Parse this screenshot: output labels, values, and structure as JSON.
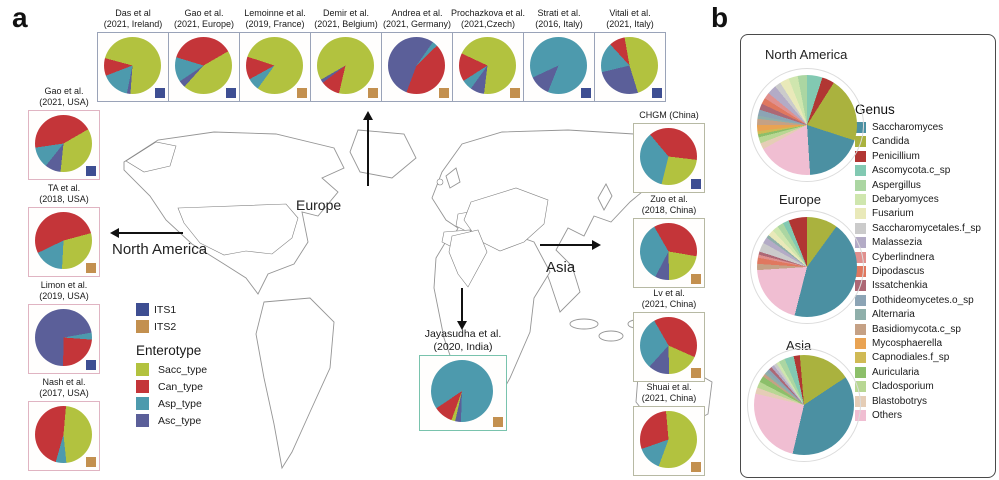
{
  "palette": {
    "ITS1": "#3e4e92",
    "ITS2": "#c3904f",
    "Sacc_type": "#b2c23f",
    "Can_type": "#c43539",
    "Asp_type": "#4d9aad",
    "Asc_type": "#5b5f99",
    "Saccharomyces": "#4b90a2",
    "Candida": "#aab23e",
    "Penicillium": "#b13633",
    "Ascomycota.c_sp": "#82c9b2",
    "Aspergillus": "#abd6a2",
    "Debaryomyces": "#cfe6ae",
    "Fusarium": "#e9e9b9",
    "Saccharomycetales.f_sp": "#cbcbcb",
    "Malassezia": "#b3abc6",
    "Cyberlindnera": "#e0908e",
    "Dipodascus": "#e0785f",
    "Issatchenkia": "#ad6875",
    "Dothideomycetes.o_sp": "#8ca4b5",
    "Alternaria": "#8fafaa",
    "Basidiomycota.c_sp": "#c5a185",
    "Mycosphaerella": "#e9a353",
    "Capnodiales.f_sp": "#d0ba55",
    "Auricularia": "#8cbf6a",
    "Cladosporium": "#b8d793",
    "Blastobotrys": "#e5cdb6",
    "Others": "#f0bed2"
  },
  "panel_a": {
    "label": "a",
    "region_labels": {
      "europe": "Europe",
      "north_america": "North America",
      "asia": "Asia"
    },
    "legend": {
      "its": [
        "ITS1",
        "ITS2"
      ],
      "enterotype_title": "Enterotype",
      "enterotypes": [
        "Sacc_type",
        "Can_type",
        "Asp_type",
        "Asc_type"
      ]
    },
    "map_colors": {
      "usa": "#e9a3b7",
      "alaska": "#e9a3b7",
      "france": "#d6ba2e",
      "germany": "#9dbac9",
      "spain": "#90399b",
      "italy": "#32509e",
      "ireland": "#32509e",
      "china": "#90906a",
      "india": "#7dceaa"
    }
  },
  "panel_b": {
    "label": "b",
    "genus_title": "Genus",
    "genus_legend": [
      "Saccharomyces",
      "Candida",
      "Penicillium",
      "Ascomycota.c_sp",
      "Aspergillus",
      "Debaryomyces",
      "Fusarium",
      "Saccharomycetales.f_sp",
      "Malassezia",
      "Cyberlindnera",
      "Dipodascus",
      "Issatchenkia",
      "Dothideomycetes.o_sp",
      "Alternaria",
      "Basidiomycota.c_sp",
      "Mycosphaerella",
      "Capnodiales.f_sp",
      "Auricularia",
      "Cladosporium",
      "Blastobotrys",
      "Others"
    ]
  },
  "chart_data": [
    {
      "id": "das-ireland",
      "type": "pie",
      "group": "top",
      "title": "Das et al",
      "subtitle": "(2021, Ireland)",
      "marker": "ITS1",
      "start_deg": 285,
      "slices": [
        [
          "Sacc_type",
          72
        ],
        [
          "Asc_type",
          2
        ],
        [
          "Asp_type",
          16
        ],
        [
          "Can_type",
          10
        ]
      ]
    },
    {
      "id": "gao-europe",
      "type": "pie",
      "group": "top",
      "title": "Gao et al.",
      "subtitle": "(2021, Europe)",
      "marker": "ITS1",
      "start_deg": 60,
      "slices": [
        [
          "Sacc_type",
          45
        ],
        [
          "Asc_type",
          4
        ],
        [
          "Asp_type",
          14
        ],
        [
          "Can_type",
          37
        ]
      ]
    },
    {
      "id": "lemoinne-france",
      "type": "pie",
      "group": "top",
      "title": "Lemoinne et al.",
      "subtitle": "(2019, France)",
      "marker": "ITS2",
      "start_deg": 288,
      "slices": [
        [
          "Sacc_type",
          80
        ],
        [
          "Asp_type",
          7
        ],
        [
          "Can_type",
          13
        ]
      ]
    },
    {
      "id": "demir-belgium",
      "type": "pie",
      "group": "top",
      "title": "Demir et al.",
      "subtitle": "(2021, Belgium)",
      "marker": "ITS2",
      "start_deg": 240,
      "slices": [
        [
          "Sacc_type",
          87
        ],
        [
          "Can_type",
          11
        ],
        [
          "Asc_type",
          2
        ]
      ]
    },
    {
      "id": "andrea-germany",
      "type": "pie",
      "group": "top",
      "title": "Andrea et al.",
      "subtitle": "(2021, Germany)",
      "marker": "ITS2",
      "start_deg": 35,
      "slices": [
        [
          "Asp_type",
          3
        ],
        [
          "Can_type",
          43
        ],
        [
          "Asc_type",
          54
        ]
      ]
    },
    {
      "id": "prochazkova-czech",
      "type": "pie",
      "group": "top",
      "title": "Prochazkova et al.",
      "subtitle": "(2021,Czech)",
      "marker": "ITS2",
      "start_deg": 295,
      "slices": [
        [
          "Sacc_type",
          70
        ],
        [
          "Asc_type",
          8
        ],
        [
          "Asp_type",
          6
        ],
        [
          "Can_type",
          16
        ]
      ]
    },
    {
      "id": "strati-italy",
      "type": "pie",
      "group": "top",
      "title": "Strati et al.",
      "subtitle": "(2016, Italy)",
      "marker": "ITS1",
      "start_deg": 245,
      "slices": [
        [
          "Asp_type",
          88
        ],
        [
          "Asc_type",
          12
        ]
      ]
    },
    {
      "id": "vitali-italy",
      "type": "pie",
      "group": "top",
      "title": "Vitali et al.",
      "subtitle": "(2021, Italy)",
      "marker": "ITS1",
      "start_deg": 350,
      "slices": [
        [
          "Sacc_type",
          48
        ],
        [
          "Asc_type",
          26
        ],
        [
          "Asp_type",
          17
        ],
        [
          "Can_type",
          9
        ]
      ]
    },
    {
      "id": "gao-usa",
      "type": "pie",
      "group": "left",
      "title": "Gao et al.",
      "subtitle": "(2021, USA)",
      "marker": "ITS1",
      "start_deg": 60,
      "slices": [
        [
          "Sacc_type",
          35
        ],
        [
          "Asc_type",
          9
        ],
        [
          "Asp_type",
          12
        ],
        [
          "Can_type",
          44
        ]
      ]
    },
    {
      "id": "ta-usa",
      "type": "pie",
      "group": "left",
      "title": "TA et al.",
      "subtitle": "(2018, USA)",
      "marker": "ITS2",
      "start_deg": 75,
      "slices": [
        [
          "Sacc_type",
          30
        ],
        [
          "Asp_type",
          17
        ],
        [
          "Can_type",
          53
        ]
      ]
    },
    {
      "id": "limon-usa",
      "type": "pie",
      "group": "left",
      "title": "Limon et al.",
      "subtitle": "(2019, USA)",
      "marker": "ITS1",
      "start_deg": 80,
      "slices": [
        [
          "Asp_type",
          4
        ],
        [
          "Can_type",
          24
        ],
        [
          "Asc_type",
          72
        ]
      ]
    },
    {
      "id": "nash-usa",
      "type": "pie",
      "group": "left",
      "title": "Nash et al.",
      "subtitle": "(2017, USA)",
      "marker": "ITS2",
      "start_deg": 5,
      "slices": [
        [
          "Sacc_type",
          47
        ],
        [
          "Asp_type",
          6
        ],
        [
          "Can_type",
          47
        ]
      ]
    },
    {
      "id": "chgm-china",
      "type": "pie",
      "group": "right",
      "title": "CHGM (China)",
      "subtitle": "",
      "marker": "ITS1",
      "start_deg": 320,
      "slices": [
        [
          "Can_type",
          38
        ],
        [
          "Sacc_type",
          27
        ],
        [
          "Asp_type",
          35
        ]
      ]
    },
    {
      "id": "zuo-china",
      "type": "pie",
      "group": "right",
      "title": "Zuo et al.",
      "subtitle": "(2018, China)",
      "marker": "ITS2",
      "start_deg": 330,
      "slices": [
        [
          "Can_type",
          36
        ],
        [
          "Sacc_type",
          22
        ],
        [
          "Asc_type",
          8
        ],
        [
          "Asp_type",
          34
        ]
      ]
    },
    {
      "id": "lv-china",
      "type": "pie",
      "group": "right",
      "title": "Lv et al.",
      "subtitle": "(2021, China)",
      "marker": "ITS2",
      "start_deg": 330,
      "slices": [
        [
          "Can_type",
          40
        ],
        [
          "Sacc_type",
          18
        ],
        [
          "Asc_type",
          12
        ],
        [
          "Asp_type",
          30
        ]
      ]
    },
    {
      "id": "shuai-china",
      "type": "pie",
      "group": "right",
      "title": "Shuai et al.",
      "subtitle": "(2021, China)",
      "marker": "ITS2",
      "start_deg": 355,
      "slices": [
        [
          "Sacc_type",
          57
        ],
        [
          "Asp_type",
          14
        ],
        [
          "Can_type",
          29
        ]
      ]
    },
    {
      "id": "jayasudha-india",
      "type": "pie",
      "group": "india",
      "title": "Jayasudha et al.",
      "subtitle": "(2020, India)",
      "marker": "ITS2",
      "start_deg": 182,
      "slices": [
        [
          "Asc_type",
          3
        ],
        [
          "Sacc_type",
          2
        ],
        [
          "Can_type",
          10
        ],
        [
          "Asp_type",
          85
        ]
      ]
    },
    {
      "id": "region-north-america",
      "type": "pie",
      "group": "region",
      "title": "North America",
      "start_deg": 0,
      "slices": [
        [
          "Ascomycota.c_sp",
          5
        ],
        [
          "Penicillium",
          4
        ],
        [
          "Candida",
          21
        ],
        [
          "Saccharomyces",
          19
        ],
        [
          "Others",
          18
        ],
        [
          "Blastobotrys",
          2
        ],
        [
          "Cladosporium",
          2
        ],
        [
          "Auricularia",
          1
        ],
        [
          "Capnodiales.f_sp",
          1
        ],
        [
          "Mycosphaerella",
          2
        ],
        [
          "Basidiomycota.c_sp",
          2
        ],
        [
          "Alternaria",
          1
        ],
        [
          "Dothideomycetes.o_sp",
          2
        ],
        [
          "Issatchenkia",
          2
        ],
        [
          "Dipodascus",
          2
        ],
        [
          "Cyberlindnera",
          2
        ],
        [
          "Malassezia",
          3
        ],
        [
          "Saccharomycetales.f_sp",
          2
        ],
        [
          "Fusarium",
          3
        ],
        [
          "Debaryomyces",
          3
        ],
        [
          "Aspergillus",
          3
        ]
      ]
    },
    {
      "id": "region-europe",
      "type": "pie",
      "group": "region",
      "title": "Europe",
      "start_deg": 0,
      "slices": [
        [
          "Candida",
          10
        ],
        [
          "Saccharomyces",
          44
        ],
        [
          "Others",
          20
        ],
        [
          "Basidiomycota.c_sp",
          2
        ],
        [
          "Dipodascus",
          2
        ],
        [
          "Cyberlindnera",
          1
        ],
        [
          "Issatchenkia",
          1
        ],
        [
          "Saccharomycetales.f_sp",
          3
        ],
        [
          "Malassezia",
          2
        ],
        [
          "Alternaria",
          1
        ],
        [
          "Fusarium",
          2
        ],
        [
          "Debaryomyces",
          2
        ],
        [
          "Aspergillus",
          2
        ],
        [
          "Ascomycota.c_sp",
          2
        ],
        [
          "Penicillium",
          6
        ]
      ]
    },
    {
      "id": "region-asia",
      "type": "pie",
      "group": "region",
      "title": "Asia",
      "start_deg": 348,
      "slices": [
        [
          "Penicillium",
          2
        ],
        [
          "Candida",
          17
        ],
        [
          "Saccharomyces",
          38
        ],
        [
          "Others",
          25
        ],
        [
          "Blastobotrys",
          2
        ],
        [
          "Cladosporium",
          2
        ],
        [
          "Auricularia",
          2
        ],
        [
          "Basidiomycota.c_sp",
          1
        ],
        [
          "Alternaria",
          1
        ],
        [
          "Dothideomycetes.o_sp",
          1
        ],
        [
          "Issatchenkia",
          1
        ],
        [
          "Malassezia",
          1
        ],
        [
          "Saccharomycetales.f_sp",
          1
        ],
        [
          "Debaryomyces",
          1
        ],
        [
          "Aspergillus",
          2
        ],
        [
          "Ascomycota.c_sp",
          3
        ]
      ]
    }
  ]
}
